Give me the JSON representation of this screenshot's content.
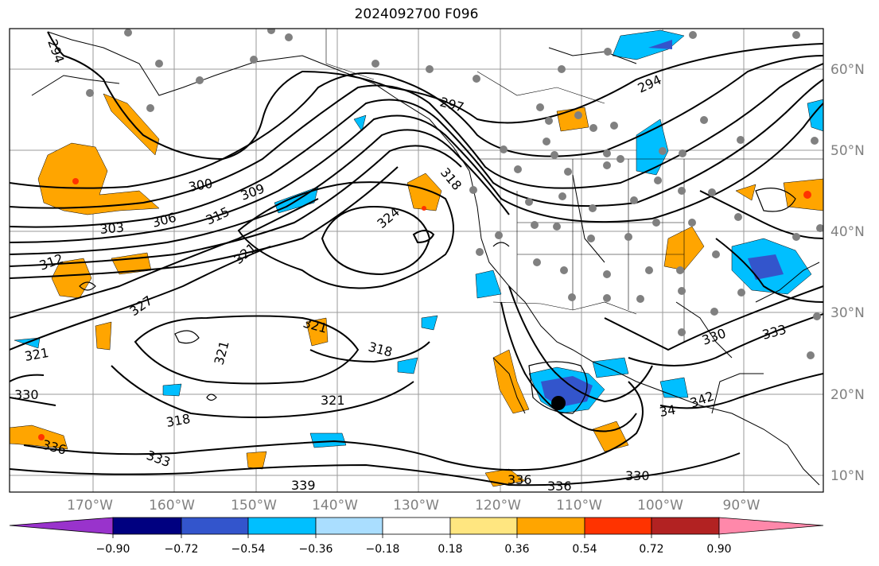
{
  "map": {
    "title": "2024092700 F096",
    "longitude_labels": [
      "170°W",
      "160°W",
      "150°W",
      "140°W",
      "130°W",
      "120°W",
      "110°W",
      "100°W",
      "90°W"
    ],
    "latitude_labels": [
      "60°N",
      "50°N",
      "40°N",
      "30°N",
      "20°N",
      "10°N"
    ],
    "contour_labels": [
      "294",
      "297",
      "294",
      "300",
      "303",
      "306",
      "309",
      "312",
      "315",
      "318",
      "321",
      "324",
      "327",
      "330",
      "336",
      "333",
      "339",
      "336",
      "336",
      "330",
      "333",
      "330",
      "321",
      "321",
      "318",
      "318",
      "321",
      "321",
      "342",
      "34"
    ],
    "storm_marker": "filled-circle-icon",
    "colors": {
      "land_lines": "#000000",
      "contours": "#000000",
      "gridlines": "#808080",
      "stations": "#808080",
      "labels": "#808080"
    }
  },
  "colorbar": {
    "tick_labels": [
      "−0.90",
      "−0.72",
      "−0.54",
      "−0.36",
      "−0.18",
      "0.18",
      "0.36",
      "0.54",
      "0.72",
      "0.90"
    ],
    "colors": [
      "#9933cc",
      "#000080",
      "#3355cc",
      "#00bfff",
      "#aadeff",
      "#ffffff",
      "#ffe680",
      "#ffa500",
      "#ff3300",
      "#b22222",
      "#ff88aa"
    ]
  }
}
